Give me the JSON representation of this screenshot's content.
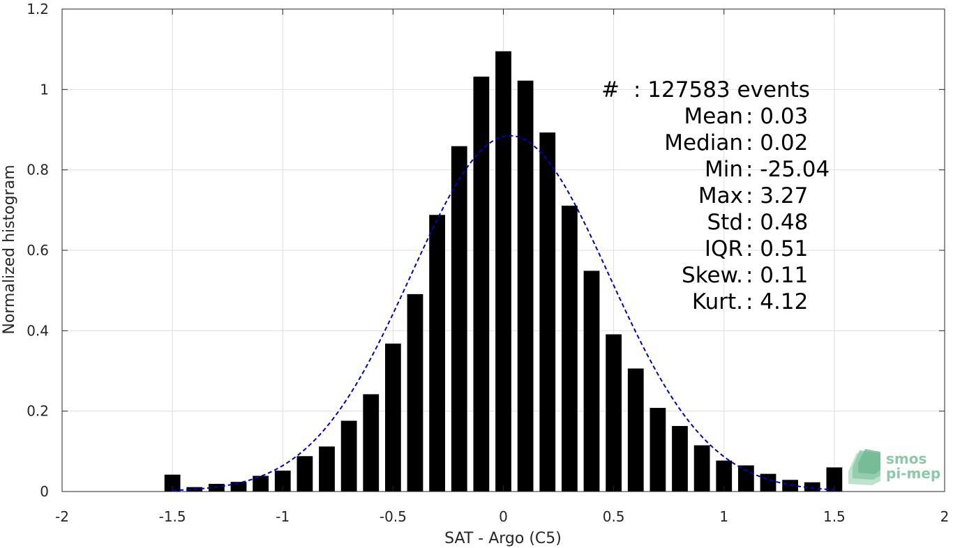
{
  "chart_data": {
    "type": "bar",
    "title": "",
    "xlabel": "SAT - Argo (C5)",
    "ylabel": "Normalized histogram",
    "xlim": [
      -2,
      2
    ],
    "ylim": [
      0,
      1.2
    ],
    "grid": true,
    "xticks": [
      -2,
      -1.5,
      -1,
      -0.5,
      0,
      0.5,
      1,
      1.5,
      2
    ],
    "xtick_labels": [
      "-2",
      "-1.5",
      "-1",
      "-0.5",
      "0",
      "0.5",
      "1",
      "1.5",
      "2"
    ],
    "yticks": [
      0,
      0.2,
      0.4,
      0.6,
      0.8,
      1,
      1.2
    ],
    "ytick_labels": [
      "0",
      "0.2",
      "0.4",
      "0.6",
      "0.8",
      "1",
      "1.2"
    ],
    "bar_color": "#000000",
    "bin_width": 0.1,
    "x": [
      -1.5,
      -1.4,
      -1.3,
      -1.2,
      -1.1,
      -1.0,
      -0.9,
      -0.8,
      -0.7,
      -0.6,
      -0.5,
      -0.4,
      -0.3,
      -0.2,
      -0.1,
      0.0,
      0.1,
      0.2,
      0.3,
      0.4,
      0.5,
      0.6,
      0.7,
      0.8,
      0.9,
      1.0,
      1.1,
      1.2,
      1.3,
      1.4,
      1.5
    ],
    "values": [
      0.042,
      0.011,
      0.019,
      0.024,
      0.039,
      0.052,
      0.088,
      0.112,
      0.176,
      0.242,
      0.368,
      0.491,
      0.688,
      0.859,
      1.032,
      1.095,
      1.022,
      0.893,
      0.711,
      0.549,
      0.391,
      0.306,
      0.208,
      0.163,
      0.115,
      0.077,
      0.065,
      0.044,
      0.029,
      0.023,
      0.06
    ],
    "fit": {
      "style": "dashed",
      "color": "#0000cc",
      "mean": 0.03,
      "std": 0.45,
      "peak": 0.885,
      "x_range": [
        -1.5,
        1.5
      ]
    },
    "annotations": [
      {
        "label": "#  ",
        "value": ": 127583 events"
      },
      {
        "label": "Mean ",
        "value": ": 0.03"
      },
      {
        "label": "Median ",
        "value": ": 0.02"
      },
      {
        "label": "Min ",
        "value": ": -25.04"
      },
      {
        "label": "Max ",
        "value": ": 3.27"
      },
      {
        "label": "Std ",
        "value": ": 0.48"
      },
      {
        "label": "IQR ",
        "value": ": 0.51"
      },
      {
        "label": "Skew. ",
        "value": ": 0.11"
      },
      {
        "label": "Kurt. ",
        "value": ": 4.12"
      }
    ]
  },
  "logo": {
    "line1": "smos",
    "line2": "pi-mep",
    "color": "#8cc9a8",
    "icon": "smos-pimep-logo-icon"
  }
}
